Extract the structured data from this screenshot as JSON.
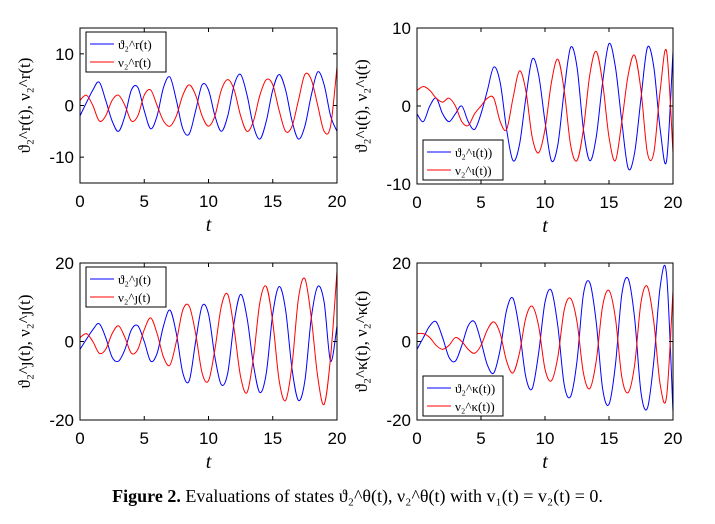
{
  "caption": {
    "label": "Figure 2.",
    "text": "Evaluations of states ϑ₂^θ(t), ν₂^θ(t) with v₁(t) = v₂(t) = 0."
  },
  "colors": {
    "series_a": "#0000ff",
    "series_b": "#ff0000"
  },
  "chart_data": [
    {
      "type": "line",
      "title": "",
      "xlabel": "t",
      "ylabel": "ϑ₂^r(t), ν₂^r(t)",
      "xlim": [
        0,
        20
      ],
      "ylim": [
        -15,
        15
      ],
      "xticks": [
        "0",
        "5",
        "10",
        "15",
        "20"
      ],
      "yticks": [
        "10",
        "0",
        "-10"
      ],
      "ytick_values": [
        10,
        0,
        -10
      ],
      "legend_position": "top-left",
      "series": [
        {
          "name": "ϑ₂^r(t)",
          "color": "blue",
          "x": [
            0,
            1,
            1.5,
            2,
            2.5,
            3,
            3.5,
            4,
            4.5,
            5,
            5.5,
            6,
            6.5,
            7,
            7.5,
            8,
            8.5,
            9,
            9.5,
            10,
            10.5,
            11,
            11.5,
            12,
            12.5,
            13,
            13.5,
            14,
            14.5,
            15,
            15.5,
            16,
            16.5,
            17,
            17.5,
            18,
            18.5,
            19,
            19.5,
            20
          ],
          "y": [
            -2,
            3,
            4.5,
            1,
            -3,
            -5,
            -2,
            3,
            3.5,
            -1,
            -4.5,
            -2,
            3.5,
            5.5,
            1,
            -4.5,
            -5.5,
            -1,
            4,
            3,
            -2,
            -5,
            -2,
            4,
            6,
            2,
            -4,
            -6.5,
            -3,
            3,
            6,
            3,
            -3,
            -6.5,
            -4,
            2,
            6.5,
            4,
            -2,
            -5
          ]
        },
        {
          "name": "ν₂^r(t)",
          "color": "red",
          "x": [
            0,
            0.5,
            1,
            1.5,
            2,
            2.5,
            3,
            3.5,
            4,
            4.5,
            5,
            5.5,
            6,
            6.5,
            7,
            7.5,
            8,
            8.5,
            9,
            9.5,
            10,
            10.5,
            11,
            11.5,
            12,
            12.5,
            13,
            13.5,
            14,
            14.5,
            15,
            15.5,
            16,
            16.5,
            17,
            17.5,
            18,
            18.5,
            19,
            19.5,
            20
          ],
          "y": [
            1,
            2,
            0,
            -3,
            -2,
            1,
            2,
            0,
            -3,
            -2,
            2,
            3,
            0,
            -3,
            -4,
            -2,
            2,
            4,
            2,
            -2,
            -4,
            -2,
            3,
            5,
            3,
            -2,
            -5,
            -3,
            2,
            5,
            4,
            -1,
            -5,
            -4,
            1,
            6,
            5,
            0,
            -5,
            -4,
            7.5
          ]
        }
      ]
    },
    {
      "type": "line",
      "title": "",
      "xlabel": "t",
      "ylabel": "ϑ₂^ι(t), ν₂^ι(t)",
      "xlim": [
        0,
        20
      ],
      "ylim": [
        -10,
        10
      ],
      "xticks": [
        "0",
        "5",
        "10",
        "15",
        "20"
      ],
      "yticks": [
        "10",
        "0",
        "-10"
      ],
      "ytick_values": [
        10,
        0,
        -10
      ],
      "legend_position": "bottom-left",
      "series": [
        {
          "name": "ϑ₂^ι(t))",
          "color": "blue",
          "x": [
            0,
            0.5,
            1,
            1.5,
            2,
            2.5,
            3,
            3.5,
            4,
            4.5,
            5,
            5.5,
            6,
            6.5,
            7,
            7.5,
            8,
            8.5,
            9,
            9.5,
            10,
            10.5,
            11,
            11.5,
            12,
            12.5,
            13,
            13.5,
            14,
            14.5,
            15,
            15.5,
            16,
            16.5,
            17,
            17.5,
            18,
            18.5,
            19,
            19.5,
            20
          ],
          "y": [
            -1,
            -2,
            0,
            1,
            -1,
            -2,
            -1,
            0,
            -2,
            -3,
            -1,
            2,
            5,
            3,
            -3,
            -7,
            -5,
            1,
            6,
            4,
            -2,
            -7,
            -5,
            2,
            7.5,
            5,
            -3,
            -7,
            -4,
            3,
            8,
            5,
            -2,
            -8,
            -6,
            1,
            7.5,
            5,
            -3,
            -7,
            7
          ]
        },
        {
          "name": "ν₂^ι(t))",
          "color": "red",
          "x": [
            0,
            0.5,
            1,
            1.5,
            2,
            2.5,
            3,
            3.5,
            4,
            4.5,
            5,
            5.5,
            6,
            6.5,
            7,
            7.5,
            8,
            8.5,
            9,
            9.5,
            10,
            10.5,
            11,
            11.5,
            12,
            12.5,
            13,
            13.5,
            14,
            14.5,
            15,
            15.5,
            16,
            16.5,
            17,
            17.5,
            18,
            18.5,
            19,
            19.5,
            20
          ],
          "y": [
            2,
            2.5,
            2,
            1,
            0.5,
            1,
            0,
            -2,
            -2.5,
            -1,
            0,
            1,
            1,
            -2,
            -3,
            1,
            4.5,
            2,
            -4,
            -6,
            -3,
            3,
            6,
            2,
            -5,
            -7,
            -3,
            4,
            7,
            3,
            -4,
            -7,
            -2,
            4,
            6.5,
            2,
            -6,
            -6,
            2,
            7,
            -6
          ]
        }
      ]
    },
    {
      "type": "line",
      "title": "",
      "xlabel": "t",
      "ylabel": "ϑ₂^ȷ(t), ν₂^ȷ(t)",
      "xlim": [
        0,
        20
      ],
      "ylim": [
        -20,
        20
      ],
      "xticks": [
        "0",
        "5",
        "10",
        "15",
        "20"
      ],
      "yticks": [
        "20",
        "0",
        "-20"
      ],
      "ytick_values": [
        20,
        0,
        -20
      ],
      "legend_position": "top-left",
      "series": [
        {
          "name": "ϑ₂^ȷ(t)",
          "color": "blue",
          "x": [
            0,
            1,
            1.5,
            2,
            2.5,
            3,
            3.5,
            4,
            4.5,
            5,
            5.5,
            6,
            6.5,
            7,
            7.5,
            8,
            8.5,
            9,
            9.5,
            10,
            10.5,
            11,
            11.5,
            12,
            12.5,
            13,
            13.5,
            14,
            14.5,
            15,
            15.5,
            16,
            16.5,
            17,
            17.5,
            18,
            18.5,
            19,
            19.5,
            20
          ],
          "y": [
            -2,
            3,
            4.5,
            1,
            -4,
            -5,
            -2,
            3,
            4,
            0,
            -5,
            -3,
            4,
            8,
            2,
            -8,
            -10,
            0,
            9,
            7,
            -4,
            -11,
            -8,
            5,
            12,
            6,
            -6,
            -13,
            -8,
            7,
            14,
            8,
            -7,
            -15,
            -10,
            6,
            14,
            10,
            -5,
            4
          ]
        },
        {
          "name": "ν₂^ȷ(t)",
          "color": "red",
          "x": [
            0,
            0.5,
            1,
            1.5,
            2,
            2.5,
            3,
            3.5,
            4,
            4.5,
            5,
            5.5,
            6,
            6.5,
            7,
            7.5,
            8,
            8.5,
            9,
            9.5,
            10,
            10.5,
            11,
            11.5,
            12,
            12.5,
            13,
            13.5,
            14,
            14.5,
            15,
            15.5,
            16,
            16.5,
            17,
            17.5,
            18,
            18.5,
            19,
            19.5,
            20
          ],
          "y": [
            1,
            2,
            0,
            -3,
            -2,
            2,
            4,
            1,
            -3,
            -2,
            3,
            6,
            2,
            -4,
            -6,
            0,
            8,
            9,
            2,
            -8,
            -10,
            -2,
            9,
            12,
            3,
            -9,
            -13,
            -4,
            10,
            14,
            5,
            -10,
            -15,
            -6,
            11,
            16,
            6,
            -9,
            -16,
            -4,
            18
          ]
        }
      ]
    },
    {
      "type": "line",
      "title": "",
      "xlabel": "t",
      "ylabel": "ϑ₂^κ(t), ν₂^κ(t)",
      "xlim": [
        0,
        20
      ],
      "ylim": [
        -20,
        20
      ],
      "xticks": [
        "0",
        "5",
        "10",
        "15",
        "20"
      ],
      "yticks": [
        "20",
        "0",
        "-20"
      ],
      "ytick_values": [
        20,
        0,
        -20
      ],
      "legend_position": "bottom-left",
      "series": [
        {
          "name": "ϑ₂^κ(t))",
          "color": "blue",
          "x": [
            0,
            0.5,
            1,
            1.5,
            2,
            2.5,
            3,
            3.5,
            4,
            4.5,
            5,
            5.5,
            6,
            6.5,
            7,
            7.5,
            8,
            8.5,
            9,
            9.5,
            10,
            10.5,
            11,
            11.5,
            12,
            12.5,
            13,
            13.5,
            14,
            14.5,
            15,
            15.5,
            16,
            16.5,
            17,
            17.5,
            18,
            18.5,
            19,
            19.5,
            20
          ],
          "y": [
            -2,
            1,
            4,
            5,
            1,
            -4,
            -5,
            -1,
            4,
            5,
            0,
            -6,
            -8,
            -2,
            8,
            11,
            3,
            -9,
            -12,
            -3,
            10,
            13,
            4,
            -11,
            -14,
            -5,
            12,
            15,
            5,
            -12,
            -16,
            -6,
            12,
            16,
            6,
            -13,
            -17,
            -5,
            14,
            17,
            -18
          ]
        },
        {
          "name": "ν₂^κ(t))",
          "color": "red",
          "x": [
            0,
            0.5,
            1,
            1.5,
            2,
            2.5,
            3,
            3.5,
            4,
            4.5,
            5,
            5.5,
            6,
            6.5,
            7,
            7.5,
            8,
            8.5,
            9,
            9.5,
            10,
            10.5,
            11,
            11.5,
            12,
            12.5,
            13,
            13.5,
            14,
            14.5,
            15,
            15.5,
            16,
            16.5,
            17,
            17.5,
            18,
            18.5,
            19,
            19.5,
            20
          ],
          "y": [
            2,
            2,
            1,
            -1,
            -2,
            -1,
            1,
            0,
            -2,
            -3,
            -1,
            3,
            5,
            2,
            -5,
            -8,
            -3,
            6,
            9,
            4,
            -7,
            -10,
            -4,
            8,
            11,
            5,
            -8,
            -12,
            -5,
            9,
            13,
            6,
            -9,
            -13,
            -6,
            10,
            14,
            5,
            -11,
            -14,
            13
          ]
        }
      ]
    }
  ]
}
